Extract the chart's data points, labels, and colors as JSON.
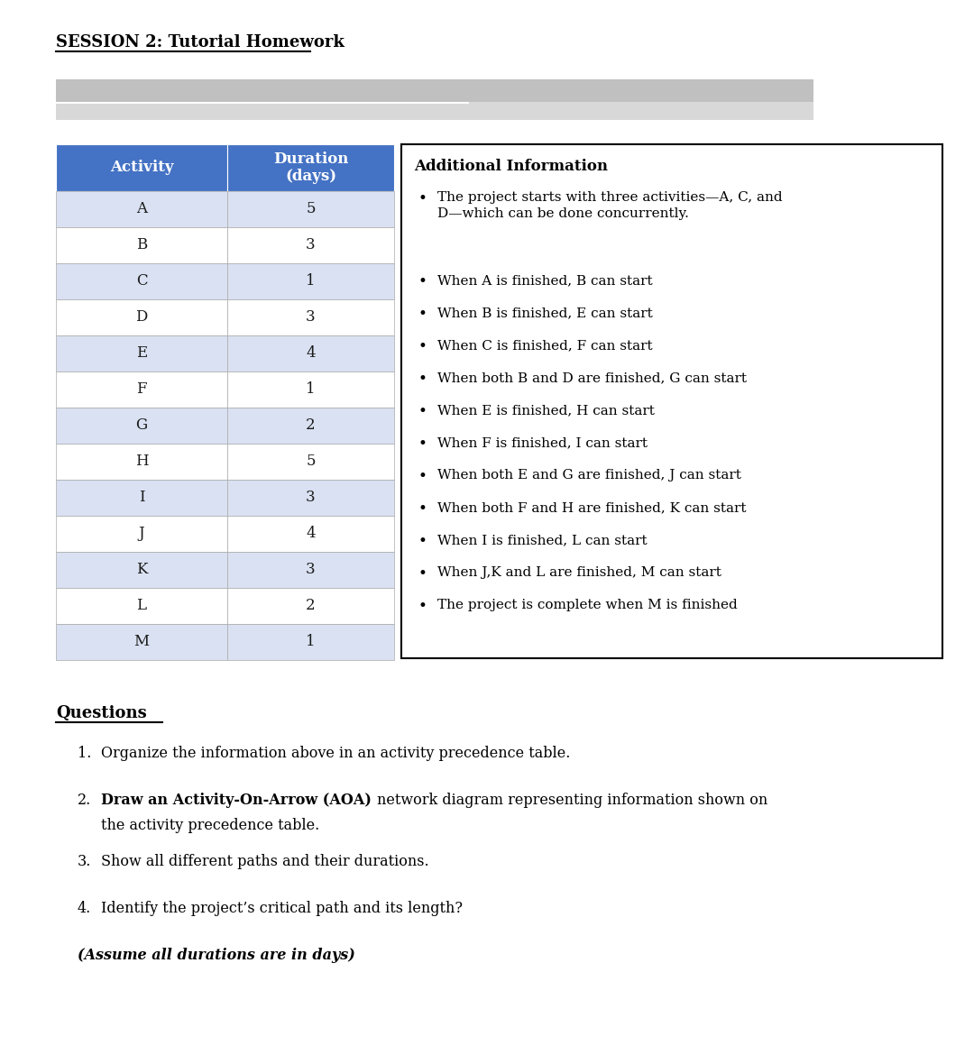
{
  "title": "SESSION 2: Tutorial Homework",
  "activities": [
    "A",
    "B",
    "C",
    "D",
    "E",
    "F",
    "G",
    "H",
    "I",
    "J",
    "K",
    "L",
    "M"
  ],
  "durations": [
    5,
    3,
    1,
    3,
    4,
    1,
    2,
    5,
    3,
    4,
    3,
    2,
    1
  ],
  "header_bg": "#4472C4",
  "header_text_color": "#FFFFFF",
  "row_color_light": "#D9E1F2",
  "row_color_white": "#FFFFFF",
  "col1_header": "Activity",
  "col2_header": "Duration\n(days)",
  "additional_info_title": "Additional Information",
  "bullet_points": [
    "The project starts with three activities—A, C, and\nD—which can be done concurrently.",
    "When A is finished, B can start",
    "When B is finished, E can start",
    "When C is finished, F can start",
    "When both B and D are finished, G can start",
    "When E is finished, H can start",
    "When F is finished, I can start",
    "When both E and G are finished, J can start",
    "When both F and H are finished, K can start",
    "When I is finished, L can start",
    "When J,K and L are finished, M can start",
    "The project is complete when M is finished"
  ],
  "questions_title": "Questions",
  "q1": "Organize the information above in an activity precedence table.",
  "q2_bold": "Draw an Activity-On-Arrow (AOA) ",
  "q2_normal": "network diagram representing information shown on",
  "q2_line2": "the activity precedence table.",
  "q3": "Show all different paths and their durations.",
  "q4": "Identify the project’s critical path and its length?",
  "italic_note": "(Assume all durations are in days)",
  "background_color": "#FFFFFF",
  "banner1_color": "#C0C0C0",
  "banner2_color": "#D8D8D8"
}
